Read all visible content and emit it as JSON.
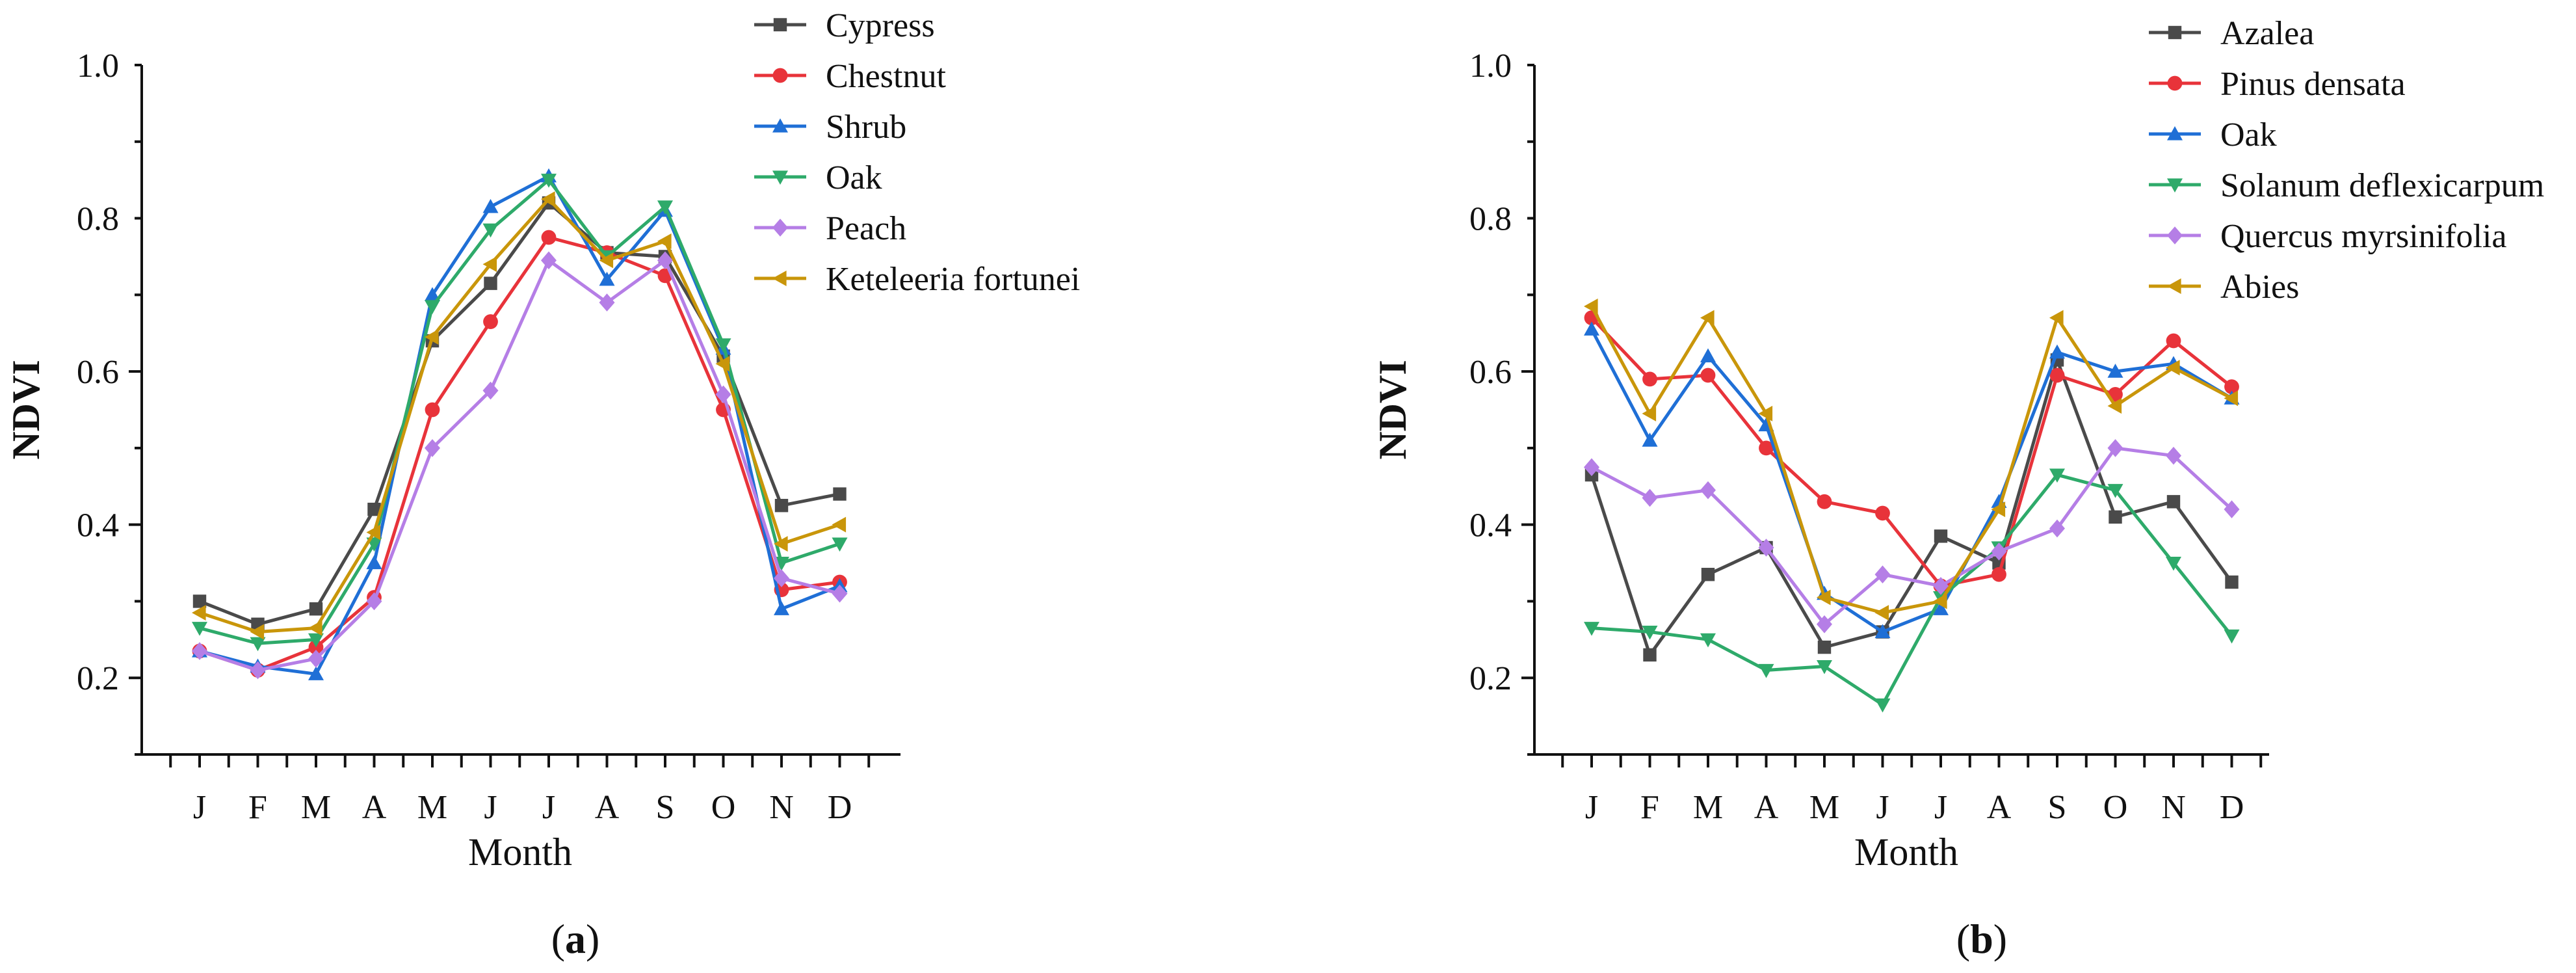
{
  "chart_data": [
    {
      "type": "line",
      "panel_label": "a",
      "categories": [
        "J",
        "F",
        "M",
        "A",
        "M",
        "J",
        "J",
        "A",
        "S",
        "O",
        "N",
        "D"
      ],
      "xlabel": "Month",
      "ylabel": "NDVI",
      "ylim": [
        0.1,
        1.0
      ],
      "yticks": [
        "0.2",
        "0.4",
        "0.6",
        "0.8",
        "1.0"
      ],
      "legend_position": "top-right",
      "series": [
        {
          "name": "Cypress",
          "color": "#4a4a4a",
          "marker": "square",
          "values": [
            0.3,
            0.27,
            0.29,
            0.42,
            0.64,
            0.715,
            0.82,
            0.755,
            0.75,
            0.62,
            0.425,
            0.44
          ]
        },
        {
          "name": "Chestnut",
          "color": "#e8333a",
          "marker": "circle",
          "values": [
            0.235,
            0.21,
            0.24,
            0.305,
            0.55,
            0.665,
            0.775,
            0.755,
            0.725,
            0.55,
            0.315,
            0.325
          ]
        },
        {
          "name": "Shrub",
          "color": "#1f6fd6",
          "marker": "triangle-up",
          "values": [
            0.235,
            0.215,
            0.205,
            0.35,
            0.7,
            0.815,
            0.855,
            0.72,
            0.81,
            0.63,
            0.29,
            0.32
          ]
        },
        {
          "name": "Oak",
          "color": "#2eaa6a",
          "marker": "triangle-down",
          "values": [
            0.265,
            0.245,
            0.25,
            0.375,
            0.685,
            0.785,
            0.85,
            0.75,
            0.815,
            0.635,
            0.35,
            0.375
          ]
        },
        {
          "name": "Peach",
          "color": "#b57ee6",
          "marker": "diamond",
          "values": [
            0.235,
            0.21,
            0.225,
            0.3,
            0.5,
            0.575,
            0.745,
            0.69,
            0.745,
            0.57,
            0.33,
            0.31
          ]
        },
        {
          "name": "Keteleeria fortunei",
          "color": "#c9960a",
          "marker": "triangle-left",
          "values": [
            0.285,
            0.26,
            0.265,
            0.39,
            0.645,
            0.74,
            0.825,
            0.745,
            0.77,
            0.61,
            0.375,
            0.4
          ]
        }
      ]
    },
    {
      "type": "line",
      "panel_label": "b",
      "categories": [
        "J",
        "F",
        "M",
        "A",
        "M",
        "J",
        "J",
        "A",
        "S",
        "O",
        "N",
        "D"
      ],
      "xlabel": "Month",
      "ylabel": "NDVI",
      "ylim": [
        0.1,
        1.0
      ],
      "yticks": [
        "0.2",
        "0.4",
        "0.6",
        "0.8",
        "1.0"
      ],
      "legend_position": "top-right",
      "series": [
        {
          "name": "Azalea",
          "color": "#4a4a4a",
          "marker": "square",
          "values": [
            0.465,
            0.23,
            0.335,
            0.37,
            0.24,
            0.26,
            0.385,
            0.35,
            0.615,
            0.41,
            0.43,
            0.325
          ]
        },
        {
          "name": "Pinus densata",
          "color": "#e8333a",
          "marker": "circle",
          "values": [
            0.67,
            0.59,
            0.595,
            0.5,
            0.43,
            0.415,
            0.32,
            0.335,
            0.595,
            0.57,
            0.64,
            0.58
          ]
        },
        {
          "name": "Oak",
          "color": "#1f6fd6",
          "marker": "triangle-up",
          "values": [
            0.655,
            0.51,
            0.62,
            0.53,
            0.31,
            0.26,
            0.29,
            0.43,
            0.625,
            0.6,
            0.61,
            0.565
          ]
        },
        {
          "name": "Solanum deflexicarpum",
          "color": "#2eaa6a",
          "marker": "triangle-down",
          "values": [
            0.265,
            0.26,
            0.25,
            0.21,
            0.215,
            0.165,
            0.305,
            0.37,
            0.465,
            0.445,
            0.35,
            0.255
          ]
        },
        {
          "name": "Quercus myrsinifolia",
          "color": "#b57ee6",
          "marker": "diamond",
          "values": [
            0.475,
            0.435,
            0.445,
            0.37,
            0.27,
            0.335,
            0.32,
            0.365,
            0.395,
            0.5,
            0.49,
            0.42
          ]
        },
        {
          "name": "Abies",
          "color": "#c9960a",
          "marker": "triangle-left",
          "values": [
            0.685,
            0.545,
            0.67,
            0.545,
            0.305,
            0.285,
            0.3,
            0.42,
            0.67,
            0.555,
            0.605,
            0.565
          ]
        }
      ]
    }
  ]
}
